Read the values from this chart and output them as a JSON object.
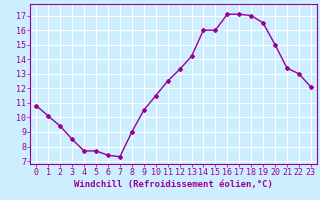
{
  "x": [
    0,
    1,
    2,
    3,
    4,
    5,
    6,
    7,
    8,
    9,
    10,
    11,
    12,
    13,
    14,
    15,
    16,
    17,
    18,
    19,
    20,
    21,
    22,
    23
  ],
  "y": [
    10.8,
    10.1,
    9.4,
    8.5,
    7.7,
    7.7,
    7.4,
    7.3,
    9.0,
    10.5,
    11.5,
    12.5,
    13.3,
    14.2,
    16.0,
    16.0,
    17.1,
    17.1,
    17.0,
    16.5,
    15.0,
    13.4,
    13.0,
    12.1
  ],
  "line_color": "#990099",
  "marker": "D",
  "markersize": 2,
  "linewidth": 1.0,
  "bg_color": "#cceeff",
  "grid_color": "#ffffff",
  "xlabel": "Windchill (Refroidissement éolien,°C)",
  "xlabel_fontsize": 6.5,
  "tick_fontsize": 6,
  "xlim": [
    -0.5,
    23.5
  ],
  "ylim": [
    6.8,
    17.8
  ],
  "yticks": [
    7,
    8,
    9,
    10,
    11,
    12,
    13,
    14,
    15,
    16,
    17
  ],
  "xticks": [
    0,
    1,
    2,
    3,
    4,
    5,
    6,
    7,
    8,
    9,
    10,
    11,
    12,
    13,
    14,
    15,
    16,
    17,
    18,
    19,
    20,
    21,
    22,
    23
  ],
  "tick_color": "#990099",
  "label_color": "#990099",
  "spine_color": "#990099"
}
